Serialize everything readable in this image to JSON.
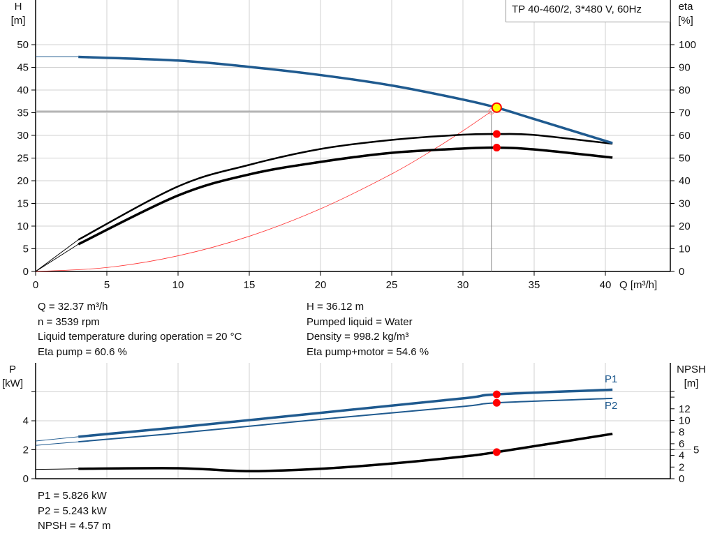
{
  "pump_title": "TP 40-460/2, 3*480 V, 60Hz",
  "info_left": [
    "Q = 32.37 m³/h",
    "n = 3539 rpm",
    "Liquid temperature during operation = 20 °C",
    "Eta pump = 60.6 %"
  ],
  "info_right": [
    "H = 36.12 m",
    "Pumped liquid = Water",
    "Density = 998.2 kg/m³",
    "Eta pump+motor = 54.6 %"
  ],
  "info_bottom": [
    "P1 = 5.826 kW",
    "P2 = 5.243 kW",
    "NPSH = 4.57 m"
  ],
  "colors": {
    "head": "#1f5a8f",
    "power": "#1f5a8f",
    "eta": "#000000",
    "system": "#ff3333",
    "duty_point": "#ff0000",
    "duty_fill": "#ffff00",
    "grid": "#d0d0d0"
  },
  "chart_data": [
    {
      "type": "line",
      "xlabel": "Q [m³/h]",
      "ylabel": "H\n[m]",
      "y2label": "eta\n[%]",
      "xlim": [
        0,
        44.5
      ],
      "ylim": [
        0,
        55
      ],
      "y2lim": [
        0,
        110
      ],
      "xticks": [
        0,
        5,
        10,
        15,
        20,
        25,
        30,
        35,
        40
      ],
      "yticks": [
        0,
        5,
        10,
        15,
        20,
        25,
        30,
        35,
        40,
        45,
        50
      ],
      "y2ticks": [
        0,
        10,
        20,
        30,
        40,
        50,
        60,
        70,
        80,
        90,
        100
      ],
      "grid": true,
      "series": [
        {
          "key": "H",
          "axis": "left",
          "x": [
            0,
            3,
            10,
            15,
            20,
            25,
            30,
            32.37,
            35,
            40.5
          ],
          "y": [
            47.3,
            47.3,
            46.5,
            45.1,
            43.3,
            41,
            37.9,
            36.12,
            33.6,
            28.3
          ],
          "thin_until": 3
        },
        {
          "key": "eta_pump",
          "axis": "right",
          "x": [
            0,
            3,
            10,
            15,
            20,
            25,
            30,
            32.37,
            35,
            40.5
          ],
          "y": [
            0,
            14,
            37.5,
            47,
            54,
            58,
            60.3,
            60.6,
            60.2,
            56.3
          ],
          "thin_until": 3
        },
        {
          "key": "eta_pump_motor",
          "axis": "right",
          "x": [
            0,
            3,
            10,
            15,
            20,
            25,
            30,
            32.37,
            35,
            40.5
          ],
          "y": [
            0,
            12,
            33.5,
            42.8,
            48.3,
            52.3,
            54.2,
            54.6,
            53.8,
            50.2
          ],
          "thin_until": 3
        },
        {
          "key": "system",
          "axis": "left",
          "x": [
            0,
            5,
            10,
            15,
            20,
            25,
            28,
            30,
            32
          ],
          "y": [
            0,
            0.86,
            3.45,
            7.76,
            13.8,
            21.5,
            27,
            31,
            35.3
          ]
        }
      ],
      "duty_point": {
        "Q": 32.37,
        "H": 36.12,
        "eta_pump": 60.6,
        "eta_pump_motor": 54.6
      }
    },
    {
      "type": "line",
      "ylabel": "P\n[kW]",
      "y2label": "NPSH\n[m]",
      "xlim": [
        0,
        44.5
      ],
      "ylim": [
        0,
        8
      ],
      "y2lim": [
        0,
        20
      ],
      "yticks": [
        0,
        2,
        4,
        6
      ],
      "yticklabels": [
        "0",
        "2",
        "4",
        ""
      ],
      "y2ticks": [
        0,
        2,
        4,
        5,
        6,
        8,
        10,
        12,
        14,
        15
      ],
      "y2ticklabels": [
        "0",
        "2",
        "4",
        "5",
        "6",
        "8",
        "10",
        "12",
        "",
        ""
      ],
      "grid": true,
      "series": [
        {
          "name": "P1",
          "axis": "left",
          "x": [
            0,
            3,
            10,
            20,
            30,
            32.37,
            40.5
          ],
          "y": [
            2.6,
            2.9,
            3.55,
            4.55,
            5.55,
            5.826,
            6.15
          ],
          "thin_until": 3
        },
        {
          "name": "P2",
          "axis": "left",
          "x": [
            0,
            3,
            10,
            20,
            30,
            32.37,
            40.5
          ],
          "y": [
            2.3,
            2.55,
            3.15,
            4.1,
            4.99,
            5.243,
            5.55
          ],
          "thin_until": 3
        },
        {
          "key": "NPSH",
          "axis": "right",
          "x": [
            0,
            3,
            10,
            15,
            20,
            25,
            30,
            32.37,
            40.5
          ],
          "y": [
            1.6,
            1.7,
            1.8,
            1.3,
            1.7,
            2.6,
            3.8,
            4.57,
            7.7
          ],
          "thin_until": 3
        }
      ],
      "duty_point": {
        "P1": 5.826,
        "P2": 5.243,
        "NPSH": 4.57
      }
    }
  ]
}
